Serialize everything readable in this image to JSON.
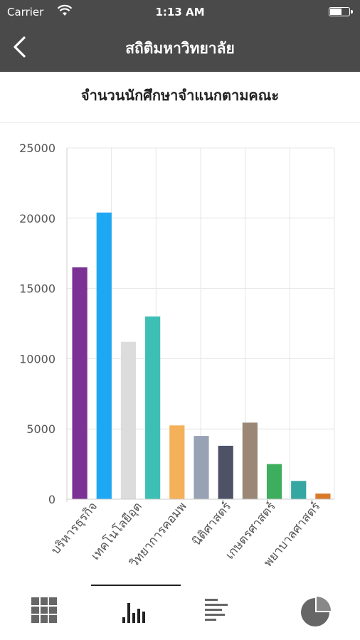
{
  "status_bar": {
    "carrier": "Carrier",
    "time": "1:13 AM",
    "battery_level": 0.65
  },
  "nav": {
    "title": "สถิติมหาวิทยาลัย",
    "back_icon": "chevron-left-icon"
  },
  "chart_title": "จำนวนนักศึกษาจำแนกตามคณะ",
  "chart_data": {
    "type": "bar",
    "title": "จำนวนนักศึกษาจำแนกตามคณะ",
    "ylim": [
      0,
      25000
    ],
    "yticks": [
      0,
      5000,
      10000,
      15000,
      20000,
      25000
    ],
    "grid": true,
    "legend": "none",
    "categories": [
      {
        "value": 16500,
        "color": "#7b3294"
      },
      {
        "value": 20400,
        "color": "#1ea7f2"
      },
      {
        "value": 11200,
        "color": "#dcdcdc"
      },
      {
        "value": 13000,
        "color": "#3dbfb5"
      },
      {
        "value": 5250,
        "color": "#f5b05a"
      },
      {
        "value": 4500,
        "color": "#97a3b4"
      },
      {
        "value": 3800,
        "color": "#4d5266"
      },
      {
        "value": 5450,
        "color": "#9b8775"
      },
      {
        "value": 2500,
        "color": "#3cae5e"
      },
      {
        "value": 1300,
        "color": "#35a6a2"
      },
      {
        "value": 400,
        "color": "#d97a2a"
      }
    ],
    "x_tick_labels": [
      "บริหารธุรกิจ",
      "เทคโนโลยีอุต",
      "วิทยาการคอมพ",
      "นิติศาสตร์",
      "เกษตรศาสตร์",
      "พยาบาลศาสตร์"
    ]
  },
  "tabs": [
    {
      "icon": "grid-icon",
      "active": false
    },
    {
      "icon": "bar-chart-icon",
      "active": true
    },
    {
      "icon": "horizontal-bar-chart-icon",
      "active": false
    },
    {
      "icon": "pie-chart-icon",
      "active": false
    }
  ]
}
